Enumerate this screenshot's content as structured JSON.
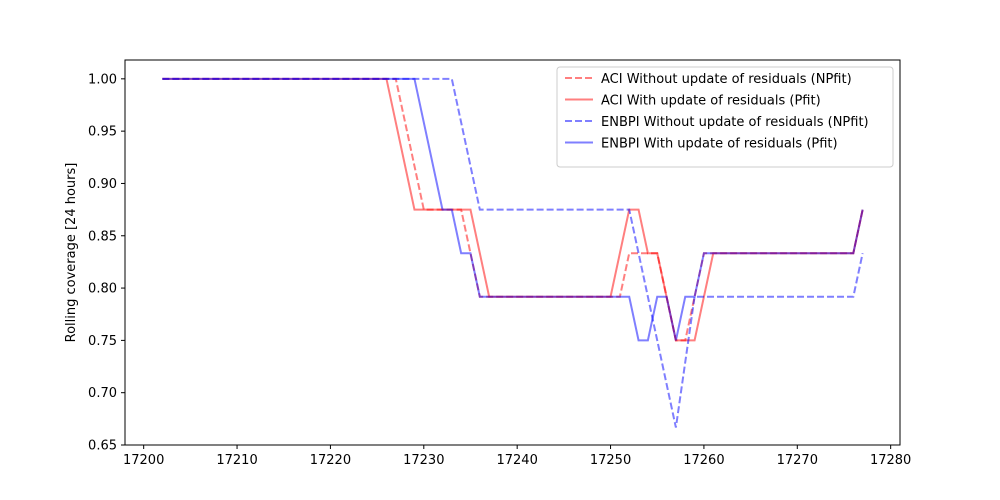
{
  "chart_data": {
    "type": "line",
    "title": "",
    "xlabel": "",
    "ylabel": "Rolling coverage [24 hours]",
    "xlim": [
      17198,
      17281
    ],
    "ylim": [
      0.65,
      1.018
    ],
    "xticks": [
      17200,
      17210,
      17220,
      17230,
      17240,
      17250,
      17260,
      17270,
      17280
    ],
    "yticks": [
      0.65,
      0.7,
      0.75,
      0.8,
      0.85,
      0.9,
      0.95,
      1.0
    ],
    "ytick_labels": [
      "0.65",
      "0.70",
      "0.75",
      "0.80",
      "0.85",
      "0.90",
      "0.95",
      "1.00"
    ],
    "grid": false,
    "legend_position": "top-right",
    "series": [
      {
        "name": "ACI Without update of residuals (NPfit)",
        "color": "#ff0000",
        "linestyle": "dashed",
        "x": [
          17202,
          17227,
          17230,
          17234,
          17236,
          17251,
          17252,
          17255,
          17257,
          17258,
          17260,
          17276,
          17277
        ],
        "y": [
          1.0,
          1.0,
          0.875,
          0.875,
          0.7917,
          0.7917,
          0.8333,
          0.8333,
          0.75,
          0.75,
          0.8333,
          0.8333,
          0.875
        ]
      },
      {
        "name": "ACI With update of residuals (Pfit)",
        "color": "#ff0000",
        "linestyle": "solid",
        "x": [
          17202,
          17226,
          17229,
          17235,
          17237,
          17250,
          17252,
          17253,
          17254,
          17255,
          17257,
          17259,
          17261,
          17276,
          17277
        ],
        "y": [
          1.0,
          1.0,
          0.875,
          0.875,
          0.7917,
          0.7917,
          0.875,
          0.875,
          0.8333,
          0.8333,
          0.75,
          0.75,
          0.8333,
          0.8333,
          0.875
        ]
      },
      {
        "name": "ENBPI Without update of residuals (NPfit)",
        "color": "#0000ff",
        "linestyle": "dashed",
        "x": [
          17202,
          17233,
          17236,
          17252,
          17257,
          17259,
          17276,
          17277
        ],
        "y": [
          1.0,
          1.0,
          0.875,
          0.875,
          0.6667,
          0.7917,
          0.7917,
          0.8333
        ]
      },
      {
        "name": "ENBPI With update of residuals (Pfit)",
        "color": "#0000ff",
        "linestyle": "solid",
        "x": [
          17202,
          17229,
          17232,
          17233,
          17234,
          17235,
          17236,
          17252,
          17253,
          17254,
          17255,
          17256,
          17257,
          17258,
          17259,
          17260,
          17276,
          17277
        ],
        "y": [
          1.0,
          1.0,
          0.875,
          0.875,
          0.8333,
          0.8333,
          0.7917,
          0.7917,
          0.75,
          0.75,
          0.7917,
          0.7917,
          0.75,
          0.7917,
          0.7917,
          0.8333,
          0.8333,
          0.875
        ]
      }
    ]
  }
}
